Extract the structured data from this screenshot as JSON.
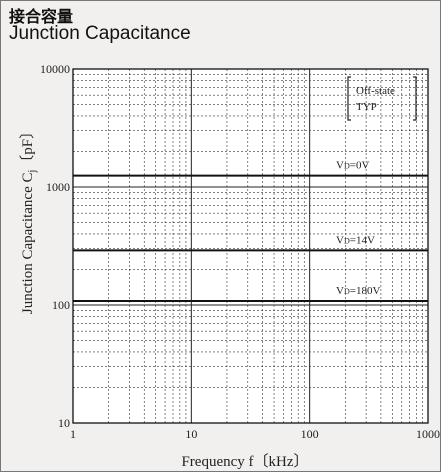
{
  "title_jp": "接合容量",
  "title_en": "Junction Capacitance",
  "chart_data": {
    "type": "line",
    "x_scale": "log",
    "y_scale": "log",
    "xlim": [
      1,
      1000
    ],
    "ylim": [
      10,
      10000
    ],
    "grid": true,
    "x_ticks": [
      "1",
      "10",
      "100",
      "1000"
    ],
    "y_ticks": [
      "10",
      "100",
      "1000",
      "10000"
    ],
    "x": [
      1,
      1000
    ],
    "series": [
      {
        "name": "VD=0V",
        "values": [
          1250,
          1250
        ]
      },
      {
        "name": "VD=14V",
        "values": [
          290,
          290
        ]
      },
      {
        "name": "VD=180V",
        "values": [
          108,
          108
        ]
      }
    ],
    "legend": [
      "Off-state",
      "TYP"
    ],
    "legend_position": "top-right"
  }
}
